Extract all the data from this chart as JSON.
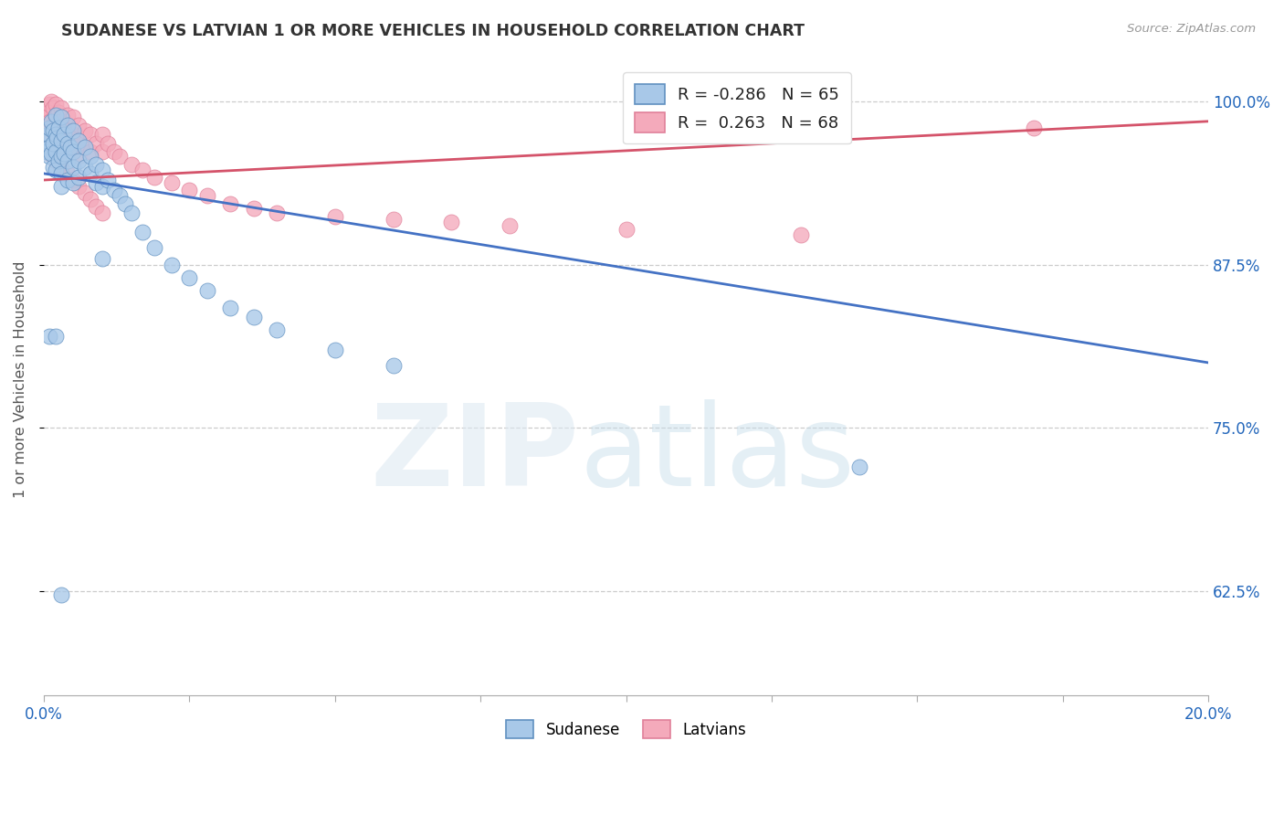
{
  "title": "SUDANESE VS LATVIAN 1 OR MORE VEHICLES IN HOUSEHOLD CORRELATION CHART",
  "source": "Source: ZipAtlas.com",
  "ylabel": "1 or more Vehicles in Household",
  "ytick_labels": [
    "100.0%",
    "87.5%",
    "75.0%",
    "62.5%"
  ],
  "ytick_values": [
    1.0,
    0.875,
    0.75,
    0.625
  ],
  "xlim": [
    0.0,
    0.2
  ],
  "ylim": [
    0.545,
    1.03
  ],
  "R_sudanese": -0.286,
  "N_sudanese": 65,
  "R_latvian": 0.263,
  "N_latvian": 68,
  "legend_label_sudanese": "Sudanese",
  "legend_label_latvian": "Latvians",
  "sudanese_color": "#a8c8e8",
  "latvian_color": "#f4aabb",
  "trend_sudanese_color": "#4472c4",
  "trend_latvian_color": "#d4536a",
  "bg_color": "#ffffff",
  "grid_color": "#cccccc",
  "sudanese_x": [
    0.0005,
    0.0005,
    0.0008,
    0.001,
    0.001,
    0.001,
    0.0012,
    0.0012,
    0.0015,
    0.0015,
    0.0015,
    0.002,
    0.002,
    0.002,
    0.002,
    0.0022,
    0.0025,
    0.0025,
    0.003,
    0.003,
    0.003,
    0.003,
    0.003,
    0.0035,
    0.0035,
    0.004,
    0.004,
    0.004,
    0.004,
    0.0045,
    0.005,
    0.005,
    0.005,
    0.005,
    0.006,
    0.006,
    0.006,
    0.007,
    0.007,
    0.008,
    0.008,
    0.009,
    0.009,
    0.01,
    0.01,
    0.011,
    0.012,
    0.013,
    0.014,
    0.015,
    0.017,
    0.019,
    0.022,
    0.025,
    0.028,
    0.032,
    0.036,
    0.04,
    0.05,
    0.06,
    0.001,
    0.002,
    0.003,
    0.14,
    0.01
  ],
  "sudanese_y": [
    0.97,
    0.962,
    0.975,
    0.98,
    0.965,
    0.958,
    0.985,
    0.96,
    0.978,
    0.968,
    0.95,
    0.99,
    0.975,
    0.962,
    0.948,
    0.972,
    0.98,
    0.955,
    0.988,
    0.97,
    0.958,
    0.945,
    0.935,
    0.975,
    0.96,
    0.982,
    0.968,
    0.955,
    0.94,
    0.965,
    0.978,
    0.962,
    0.95,
    0.938,
    0.97,
    0.955,
    0.942,
    0.965,
    0.95,
    0.958,
    0.945,
    0.952,
    0.938,
    0.948,
    0.935,
    0.94,
    0.932,
    0.928,
    0.922,
    0.915,
    0.9,
    0.888,
    0.875,
    0.865,
    0.855,
    0.842,
    0.835,
    0.825,
    0.81,
    0.798,
    0.82,
    0.82,
    0.622,
    0.72,
    0.88
  ],
  "latvian_x": [
    0.0005,
    0.0005,
    0.0008,
    0.001,
    0.001,
    0.001,
    0.0012,
    0.0012,
    0.0015,
    0.0015,
    0.002,
    0.002,
    0.002,
    0.002,
    0.0025,
    0.0025,
    0.003,
    0.003,
    0.003,
    0.003,
    0.003,
    0.0035,
    0.004,
    0.004,
    0.004,
    0.0045,
    0.005,
    0.005,
    0.005,
    0.006,
    0.006,
    0.006,
    0.007,
    0.007,
    0.008,
    0.008,
    0.009,
    0.01,
    0.01,
    0.011,
    0.012,
    0.013,
    0.015,
    0.017,
    0.019,
    0.022,
    0.025,
    0.028,
    0.032,
    0.036,
    0.001,
    0.002,
    0.003,
    0.004,
    0.005,
    0.006,
    0.007,
    0.008,
    0.009,
    0.01,
    0.04,
    0.05,
    0.06,
    0.07,
    0.08,
    0.1,
    0.13,
    0.17
  ],
  "latvian_y": [
    0.995,
    0.988,
    0.992,
    0.998,
    0.985,
    0.978,
    1.0,
    0.972,
    0.995,
    0.98,
    0.998,
    0.988,
    0.975,
    0.962,
    0.992,
    0.97,
    0.995,
    0.985,
    0.975,
    0.962,
    0.95,
    0.98,
    0.99,
    0.978,
    0.965,
    0.975,
    0.988,
    0.975,
    0.962,
    0.982,
    0.97,
    0.958,
    0.978,
    0.965,
    0.975,
    0.962,
    0.968,
    0.975,
    0.962,
    0.968,
    0.962,
    0.958,
    0.952,
    0.948,
    0.942,
    0.938,
    0.932,
    0.928,
    0.922,
    0.918,
    0.96,
    0.955,
    0.95,
    0.945,
    0.94,
    0.935,
    0.93,
    0.925,
    0.92,
    0.915,
    0.915,
    0.912,
    0.91,
    0.908,
    0.905,
    0.902,
    0.898,
    0.98
  ]
}
